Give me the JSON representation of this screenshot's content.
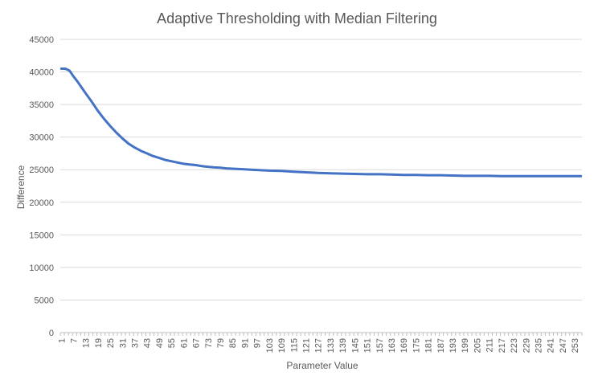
{
  "chart_data": {
    "type": "line",
    "title": "Adaptive Thresholding with Median Filtering",
    "xlabel": "Parameter Value",
    "ylabel": "Difference",
    "ylim": [
      0,
      45000
    ],
    "y_ticks": [
      0,
      5000,
      10000,
      15000,
      20000,
      25000,
      30000,
      35000,
      40000,
      45000
    ],
    "x_range": [
      1,
      256
    ],
    "x_ticks": [
      1,
      7,
      13,
      19,
      25,
      31,
      37,
      43,
      49,
      55,
      61,
      67,
      73,
      79,
      85,
      91,
      97,
      103,
      109,
      115,
      121,
      127,
      133,
      139,
      145,
      151,
      157,
      163,
      169,
      175,
      181,
      187,
      193,
      199,
      205,
      211,
      217,
      223,
      229,
      235,
      241,
      247,
      253
    ],
    "grid": "horizontal",
    "legend": "none",
    "line_color": "#4472c4",
    "series": [
      {
        "x": [
          1,
          3,
          5,
          7,
          9,
          11,
          13,
          16,
          19,
          22,
          25,
          28,
          31,
          34,
          37,
          40,
          43,
          46,
          49,
          52,
          55,
          58,
          61,
          64,
          67,
          70,
          73,
          76,
          79,
          82,
          85,
          88,
          91,
          94,
          97,
          100,
          103,
          109,
          115,
          121,
          127,
          133,
          139,
          145,
          151,
          157,
          163,
          169,
          175,
          181,
          187,
          193,
          199,
          205,
          211,
          217,
          223,
          229,
          235,
          241,
          247,
          253,
          256
        ],
        "y": [
          40500,
          40500,
          40200,
          39300,
          38500,
          37600,
          36700,
          35400,
          34000,
          32800,
          31700,
          30700,
          29800,
          29000,
          28400,
          27900,
          27500,
          27100,
          26800,
          26500,
          26300,
          26100,
          25900,
          25800,
          25700,
          25550,
          25450,
          25350,
          25300,
          25200,
          25150,
          25100,
          25050,
          25000,
          24950,
          24900,
          24850,
          24800,
          24700,
          24600,
          24500,
          24450,
          24400,
          24350,
          24300,
          24300,
          24250,
          24200,
          24200,
          24150,
          24150,
          24100,
          24050,
          24050,
          24050,
          24000,
          24000,
          24000,
          24000,
          24000,
          24000,
          24000,
          24000
        ]
      }
    ]
  }
}
